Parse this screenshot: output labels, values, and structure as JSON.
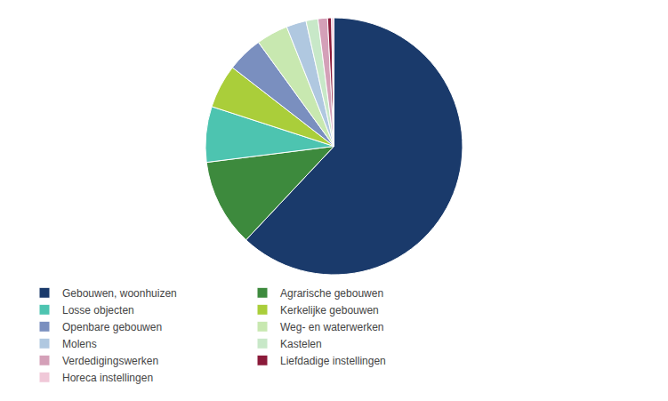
{
  "chart_data": {
    "type": "pie",
    "categories": [
      "Gebouwen, woonhuizen",
      "Agrarische gebouwen",
      "Losse objecten",
      "Kerkelijke gebouwen",
      "Openbare gebouwen",
      "Weg- en waterwerken",
      "Molens",
      "Kastelen",
      "Verdedigingswerken",
      "Liefdadige instellingen",
      "Horeca instellingen"
    ],
    "values": [
      62.0,
      11.0,
      7.0,
      5.5,
      4.5,
      4.0,
      2.5,
      1.5,
      1.2,
      0.5,
      0.3
    ],
    "colors": [
      "#1a3a6b",
      "#3d8a3d",
      "#4dc4b0",
      "#aace3a",
      "#7a8fbf",
      "#c8e8b0",
      "#b0c8e0",
      "#c8e8c8",
      "#d4a0b8",
      "#8b1a3a",
      "#f0c8d8"
    ],
    "legend": "lower left"
  }
}
